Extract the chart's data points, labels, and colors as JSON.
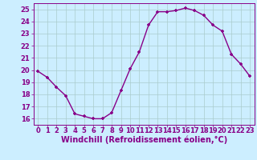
{
  "x": [
    0,
    1,
    2,
    3,
    4,
    5,
    6,
    7,
    8,
    9,
    10,
    11,
    12,
    13,
    14,
    15,
    16,
    17,
    18,
    19,
    20,
    21,
    22,
    23
  ],
  "y": [
    19.9,
    19.4,
    18.6,
    17.9,
    16.4,
    16.2,
    16.0,
    16.0,
    16.5,
    18.3,
    20.1,
    21.5,
    23.7,
    24.8,
    24.8,
    24.9,
    25.1,
    24.9,
    24.5,
    23.7,
    23.2,
    21.3,
    20.5,
    19.5
  ],
  "line_color": "#880088",
  "marker": "+",
  "bg_color": "#cceeff",
  "grid_color": "#aacccc",
  "xlabel": "Windchill (Refroidissement éolien,°C)",
  "xlim": [
    -0.5,
    23.5
  ],
  "ylim": [
    15.5,
    25.5
  ],
  "yticks": [
    16,
    17,
    18,
    19,
    20,
    21,
    22,
    23,
    24,
    25
  ],
  "xticks": [
    0,
    1,
    2,
    3,
    4,
    5,
    6,
    7,
    8,
    9,
    10,
    11,
    12,
    13,
    14,
    15,
    16,
    17,
    18,
    19,
    20,
    21,
    22,
    23
  ],
  "axis_color": "#880088",
  "tick_fontsize": 6.0,
  "xlabel_fontsize": 7.0
}
